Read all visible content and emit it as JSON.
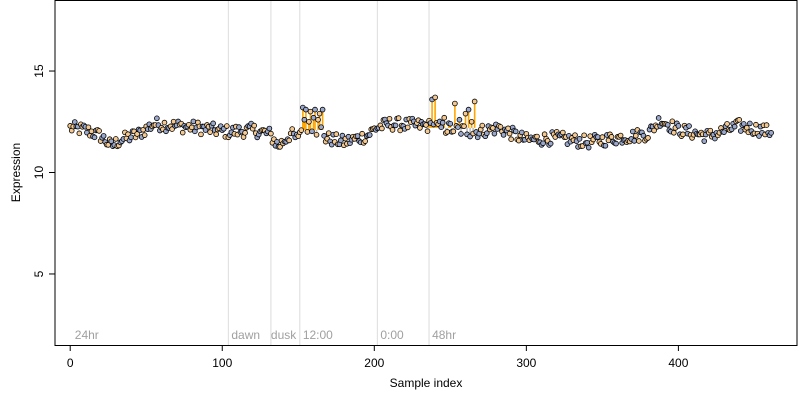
{
  "chart_data": {
    "type": "scatter",
    "title": "",
    "xlabel": "Sample index",
    "ylabel": "Expression",
    "xlim": [
      -10,
      478
    ],
    "ylim": [
      1.5,
      18.5
    ],
    "x_ticks": [
      0,
      100,
      200,
      300,
      400
    ],
    "y_ticks": [
      5,
      10,
      15
    ],
    "grid": false,
    "legend": "none",
    "colors": {
      "light_point": "#f5c98f",
      "dark_point": "#9aa8cc",
      "highlight_line": "#ffa500",
      "baseline_line": "#bdbdbd",
      "annotation_line": "#dcdcdc",
      "annotation_text": "#a0a0a0"
    },
    "annotations": [
      {
        "x": 104,
        "label": "",
        "label_x": null
      },
      {
        "x": 132,
        "label": "dawn",
        "label_x": 106
      },
      {
        "x": 151,
        "label": "dusk",
        "label_x": 132
      },
      {
        "x": 202,
        "label": "12:00",
        "label_x": 153
      },
      {
        "x": 236,
        "label": "0:00",
        "label_x": 204
      },
      {
        "x": null,
        "label": "48hr",
        "label_x": 238
      },
      {
        "x": null,
        "label": "24hr",
        "label_x": 3
      }
    ],
    "highlight_regions": [
      {
        "x_range": [
          151,
          166
        ],
        "baseline": 12.1
      },
      {
        "x_range": [
          236,
          266
        ],
        "baseline": 12.2
      }
    ],
    "base_series": [
      [
        0,
        12.2
      ],
      [
        10,
        12.1
      ],
      [
        20,
        11.8
      ],
      [
        27,
        11.3
      ],
      [
        33,
        11.6
      ],
      [
        45,
        11.9
      ],
      [
        55,
        12.4
      ],
      [
        70,
        12.3
      ],
      [
        85,
        12.2
      ],
      [
        104,
        12.0
      ],
      [
        120,
        12.1
      ],
      [
        131,
        11.9
      ],
      [
        137,
        11.3
      ],
      [
        145,
        11.9
      ],
      [
        150,
        11.6
      ],
      [
        151,
        12.1
      ],
      [
        166,
        12.1
      ],
      [
        168,
        11.7
      ],
      [
        180,
        11.5
      ],
      [
        195,
        11.8
      ],
      [
        201,
        12.2
      ],
      [
        210,
        12.4
      ],
      [
        235,
        12.3
      ],
      [
        267,
        12.0
      ],
      [
        282,
        12.2
      ],
      [
        300,
        11.6
      ],
      [
        320,
        11.7
      ],
      [
        340,
        11.5
      ],
      [
        360,
        11.7
      ],
      [
        380,
        11.9
      ],
      [
        388,
        12.6
      ],
      [
        400,
        12.1
      ],
      [
        420,
        11.8
      ],
      [
        440,
        12.3
      ],
      [
        461,
        12.0
      ]
    ],
    "noise": 0.32,
    "n_points": 462,
    "spikes": [
      {
        "x": 153,
        "y": 13.2
      },
      {
        "x": 154,
        "y": 12.6
      },
      {
        "x": 155,
        "y": 13.1
      },
      {
        "x": 157,
        "y": 12.5
      },
      {
        "x": 158,
        "y": 13.0
      },
      {
        "x": 160,
        "y": 12.7
      },
      {
        "x": 161,
        "y": 13.1
      },
      {
        "x": 163,
        "y": 12.6
      },
      {
        "x": 164,
        "y": 12.9
      },
      {
        "x": 166,
        "y": 13.1
      },
      {
        "x": 238,
        "y": 13.6
      },
      {
        "x": 240,
        "y": 13.7
      },
      {
        "x": 246,
        "y": 12.7
      },
      {
        "x": 250,
        "y": 12.4
      },
      {
        "x": 253,
        "y": 13.4
      },
      {
        "x": 256,
        "y": 12.6
      },
      {
        "x": 260,
        "y": 12.9
      },
      {
        "x": 262,
        "y": 13.1
      },
      {
        "x": 264,
        "y": 12.5
      },
      {
        "x": 266,
        "y": 13.5
      }
    ]
  }
}
